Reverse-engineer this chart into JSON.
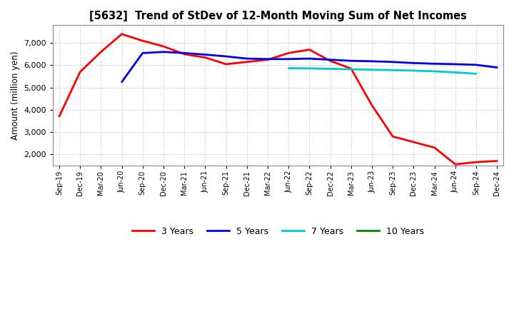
{
  "title": "[5632]  Trend of StDev of 12-Month Moving Sum of Net Incomes",
  "ylabel": "Amount (million yen)",
  "background_color": "#ffffff",
  "grid_color": "#999999",
  "ylim": [
    1500,
    7800
  ],
  "yticks": [
    2000,
    3000,
    4000,
    5000,
    6000,
    7000
  ],
  "x_labels": [
    "Sep-19",
    "Dec-19",
    "Mar-20",
    "Jun-20",
    "Sep-20",
    "Dec-20",
    "Mar-21",
    "Jun-21",
    "Sep-21",
    "Dec-21",
    "Mar-22",
    "Jun-22",
    "Sep-22",
    "Dec-22",
    "Mar-23",
    "Jun-23",
    "Sep-23",
    "Dec-23",
    "Mar-24",
    "Jun-24",
    "Sep-24",
    "Dec-24"
  ],
  "series": {
    "3 Years": {
      "color": "#ff0000",
      "linewidth": 2.0,
      "data": [
        3700,
        5700,
        6600,
        7400,
        7100,
        6850,
        6500,
        6350,
        6050,
        6150,
        6250,
        6550,
        6700,
        6200,
        5850,
        4200,
        2800,
        2550,
        2300,
        1550,
        1650,
        1700
      ]
    },
    "5 Years": {
      "color": "#0000ee",
      "linewidth": 2.0,
      "data": [
        null,
        null,
        null,
        5250,
        6550,
        6600,
        6550,
        6480,
        6400,
        6300,
        6280,
        6280,
        6300,
        6250,
        6200,
        6180,
        6150,
        6100,
        6070,
        6050,
        6020,
        5900
      ]
    },
    "7 Years": {
      "color": "#00cccc",
      "linewidth": 2.0,
      "data": [
        null,
        null,
        null,
        null,
        null,
        null,
        null,
        null,
        null,
        null,
        null,
        5870,
        5860,
        5840,
        5820,
        5800,
        5780,
        5760,
        5730,
        5680,
        5620,
        null
      ]
    },
    "10 Years": {
      "color": "#008800",
      "linewidth": 2.0,
      "data": [
        null,
        null,
        null,
        null,
        null,
        null,
        null,
        null,
        null,
        null,
        null,
        null,
        null,
        null,
        null,
        null,
        null,
        null,
        null,
        null,
        null,
        null
      ]
    }
  },
  "legend_labels": [
    "3 Years",
    "5 Years",
    "7 Years",
    "10 Years"
  ],
  "legend_colors": [
    "#ff0000",
    "#0000ee",
    "#00cccc",
    "#008800"
  ]
}
